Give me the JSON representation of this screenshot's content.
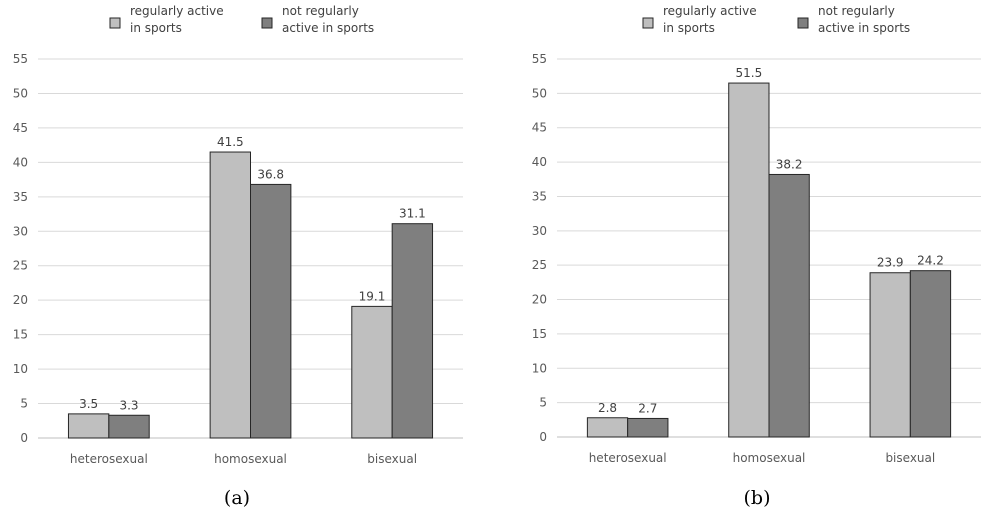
{
  "colors": {
    "regular": "#bfbfbf",
    "not_regular": "#7f7f7f",
    "bar_stroke": "#262626",
    "grid": "#d9d9d9",
    "axis": "#bfbfbf"
  },
  "chart_data": [
    {
      "type": "bar",
      "panel_label": "(a)",
      "categories": [
        "heterosexual",
        "homosexual",
        "bisexual"
      ],
      "series": [
        {
          "name": "regularly active in sports",
          "legend_lines": [
            "regularly active",
            "in sports"
          ],
          "values": [
            3.5,
            41.5,
            19.1
          ]
        },
        {
          "name": "not regularly active in sports",
          "legend_lines": [
            "not regularly",
            "active in sports"
          ],
          "values": [
            3.3,
            36.8,
            31.1
          ]
        }
      ],
      "ylim": [
        0,
        55
      ],
      "yticks": [
        0,
        5,
        10,
        15,
        20,
        25,
        30,
        35,
        40,
        45,
        50,
        55
      ],
      "grid": true,
      "legend": "top-center",
      "title": "",
      "xlabel": "",
      "ylabel": ""
    },
    {
      "type": "bar",
      "panel_label": "(b)",
      "categories": [
        "heterosexual",
        "homosexual",
        "bisexual"
      ],
      "series": [
        {
          "name": "regularly active in sports",
          "legend_lines": [
            "regularly active",
            "in sports"
          ],
          "values": [
            2.8,
            51.5,
            23.9
          ]
        },
        {
          "name": "not regularly active in sports",
          "legend_lines": [
            "not regularly",
            "active in sports"
          ],
          "values": [
            2.7,
            38.2,
            24.2
          ]
        }
      ],
      "ylim": [
        0,
        55
      ],
      "yticks": [
        0,
        5,
        10,
        15,
        20,
        25,
        30,
        35,
        40,
        45,
        50,
        55
      ],
      "grid": true,
      "legend": "top-center",
      "title": "",
      "xlabel": "",
      "ylabel": ""
    }
  ]
}
